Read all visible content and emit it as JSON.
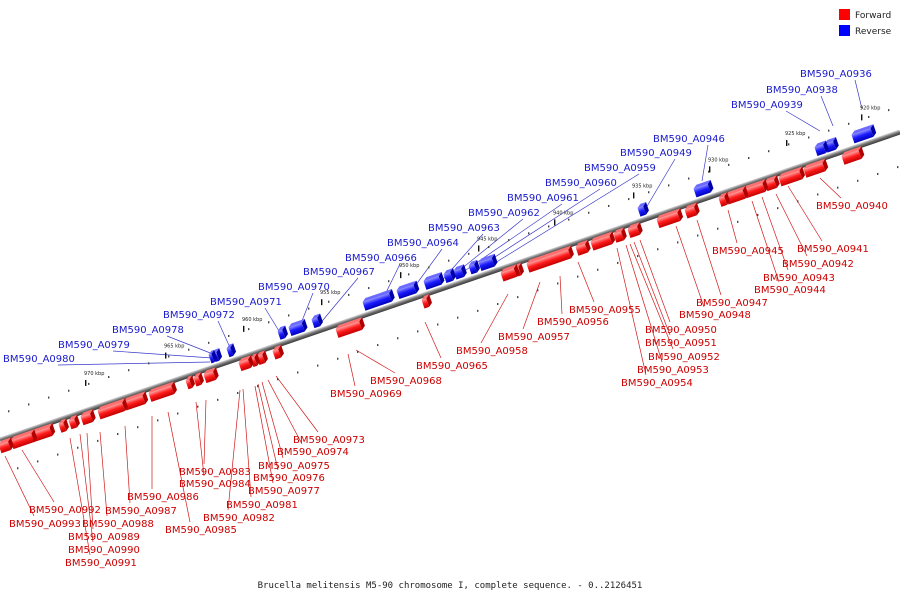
{
  "caption": "Brucella melitensis M5-90 chromosome I, complete sequence. - 0..2126451",
  "legend": [
    {
      "label": "Forward",
      "color": "#ff0000"
    },
    {
      "label": "Reverse",
      "color": "#0000ff"
    }
  ],
  "colors": {
    "forward": "#e8141a",
    "reverse": "#1414e8",
    "forward_label": "#cc0000",
    "reverse_label": "#1a1acc",
    "backbone": "#7a7a7a"
  },
  "ticks": [
    "920 kbp",
    "925 kbp",
    "930 kbp",
    "935 kbp",
    "940 kbp",
    "945 kbp",
    "950 kbp",
    "955 kbp",
    "960 kbp",
    "965 kbp",
    "970 kbp"
  ],
  "reverse_genes": [
    "BM590_A0936",
    "BM590_A0938",
    "BM590_A0939",
    "BM590_A0946",
    "BM590_A0949",
    "BM590_A0959",
    "BM590_A0960",
    "BM590_A0961",
    "BM590_A0962",
    "BM590_A0963",
    "BM590_A0964",
    "BM590_A0966",
    "BM590_A0967",
    "BM590_A0970",
    "BM590_A0971",
    "BM590_A0972",
    "BM590_A0978",
    "BM590_A0979",
    "BM590_A0980"
  ],
  "forward_genes": [
    "BM590_A0940",
    "BM590_A0941",
    "BM590_A0942",
    "BM590_A0943",
    "BM590_A0944",
    "BM590_A0945",
    "BM590_A0947",
    "BM590_A0948",
    "BM590_A0950",
    "BM590_A0951",
    "BM590_A0952",
    "BM590_A0953",
    "BM590_A0954",
    "BM590_A0955",
    "BM590_A0956",
    "BM590_A0957",
    "BM590_A0958",
    "BM590_A0965",
    "BM590_A0968",
    "BM590_A0969",
    "BM590_A0973",
    "BM590_A0974",
    "BM590_A0975",
    "BM590_A0976",
    "BM590_A0977",
    "BM590_A0981",
    "BM590_A0982",
    "BM590_A0983",
    "BM590_A0984",
    "BM590_A0985",
    "BM590_A0986",
    "BM590_A0987",
    "BM590_A0988",
    "BM590_A0989",
    "BM590_A0990",
    "BM590_A0991",
    "BM590_A0992",
    "BM590_A0993"
  ]
}
